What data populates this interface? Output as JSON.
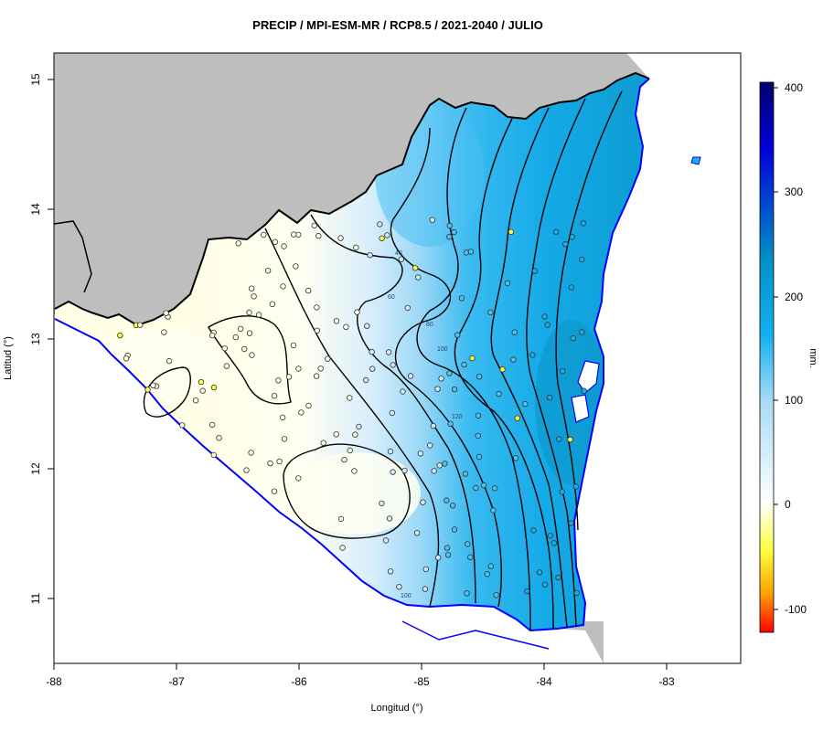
{
  "title": "PRECIP / MPI-ESM-MR / RCP8.5 / 2021-2040 / JULIO",
  "x_axis": {
    "label": "Longitud (°)",
    "ticks": [
      "-88",
      "-87",
      "-86",
      "-85",
      "-84",
      "-83"
    ]
  },
  "y_axis": {
    "label": "Latitud (°)",
    "ticks": [
      "15",
      "14",
      "13",
      "12",
      "11"
    ]
  },
  "colorbar": {
    "unit": "mm.",
    "ticks": [
      "400",
      "300",
      "200",
      "100",
      "0",
      "-100"
    ],
    "colors": [
      "#000070",
      "#0000ff",
      "#00a0c8",
      "#1ab4f0",
      "#7ecdf6",
      "#ffffff",
      "#ffff80",
      "#ffff00",
      "#ff8000",
      "#ff0000"
    ]
  },
  "contour_labels": [
    "40",
    "60",
    "80",
    "100",
    "120",
    "100"
  ],
  "colors": {
    "land_background": "#bebebe",
    "coastline": "#0000ff",
    "border": "#000000",
    "contour": "#000000"
  },
  "chart_data": {
    "type": "contour-map",
    "title": "PRECIP / MPI-ESM-MR / RCP8.5 / 2021-2040 / JULIO",
    "xlabel": "Longitud (°)",
    "ylabel": "Latitud (°)",
    "xlim": [
      -88,
      -82.4
    ],
    "ylim": [
      10.5,
      15.2
    ],
    "colorbar_range": [
      -125,
      405
    ],
    "colorbar_unit": "mm.",
    "contour_levels": [
      0,
      20,
      40,
      60,
      80,
      100,
      120,
      140,
      160,
      180,
      200,
      220
    ]
  }
}
